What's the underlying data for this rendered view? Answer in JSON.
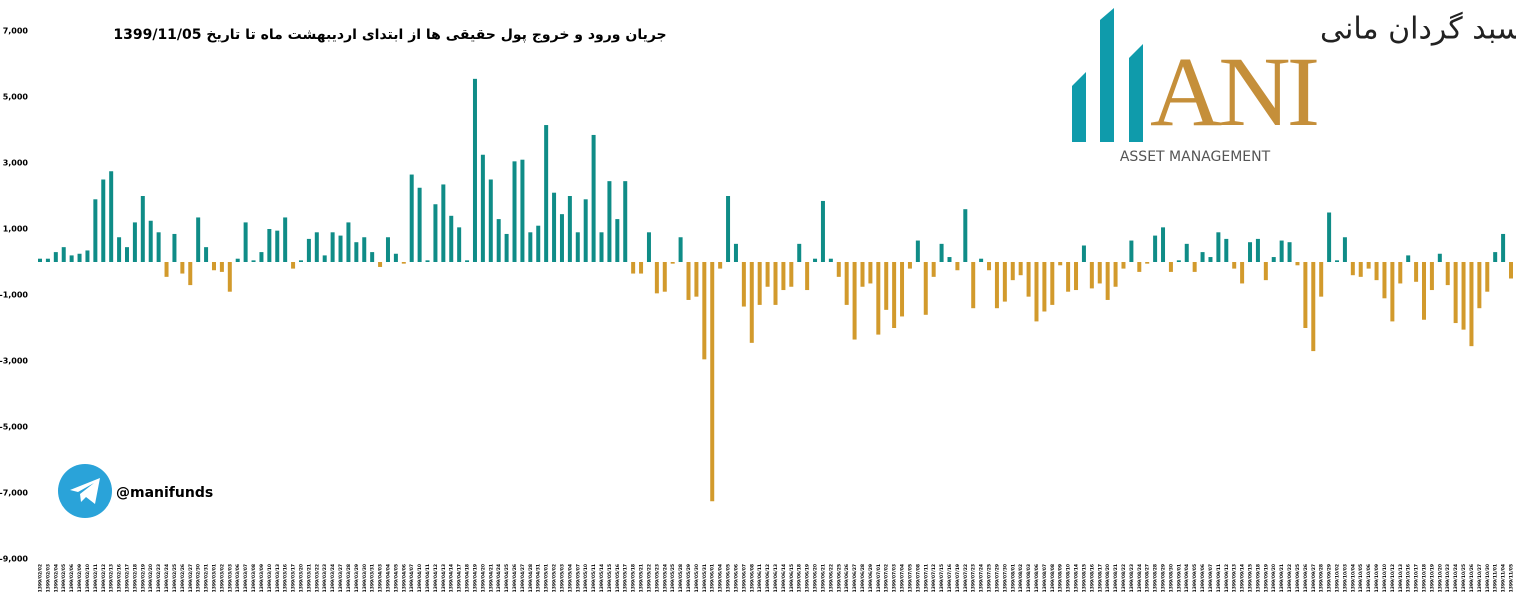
{
  "chart_data": {
    "type": "bar",
    "title": "جریان ورود و خروج پول حقیقی ها از ابتدای اردیبهشت ماه تا تاریخ 1399/11/05",
    "logo": {
      "persian": "سبد گردان مانی",
      "letters": "ANI",
      "tagline": "ASSET MANAGEMENT"
    },
    "handle": "@manifunds",
    "colors": {
      "positive": "#0f8c87",
      "negative": "#d29a2c"
    },
    "ylim": [
      -9000,
      7000
    ],
    "yticks": [
      {
        "value": 7000,
        "label": "7,000"
      },
      {
        "value": 5000,
        "label": "5,000"
      },
      {
        "value": 3000,
        "label": "3,000"
      },
      {
        "value": 1000,
        "label": "1,000"
      },
      {
        "value": -1000,
        "label": "-1,000"
      },
      {
        "value": -3000,
        "label": "-3,000"
      },
      {
        "value": -5000,
        "label": "-5,000"
      },
      {
        "value": -7000,
        "label": "-7,000"
      },
      {
        "value": -9000,
        "label": "-9,000"
      }
    ],
    "categories": [
      "1399/02/02",
      "1399/02/03",
      "1399/02/04",
      "1399/02/05",
      "1399/02/06",
      "1399/02/09",
      "1399/02/10",
      "1399/02/11",
      "1399/02/12",
      "1399/02/13",
      "1399/02/16",
      "1399/02/17",
      "1399/02/18",
      "1399/02/19",
      "1399/02/20",
      "1399/02/23",
      "1399/02/24",
      "1399/02/25",
      "1399/02/26",
      "1399/02/27",
      "1399/02/30",
      "1399/02/31",
      "1399/03/01",
      "1399/03/02",
      "1399/03/03",
      "1399/03/06",
      "1399/03/07",
      "1399/03/08",
      "1399/03/09",
      "1399/03/10",
      "1399/03/13",
      "1399/03/16",
      "1399/03/17",
      "1399/03/20",
      "1399/03/21",
      "1399/03/22",
      "1399/03/23",
      "1399/03/24",
      "1399/03/27",
      "1399/03/28",
      "1399/03/29",
      "1399/03/30",
      "1399/03/31",
      "1399/04/03",
      "1399/04/04",
      "1399/04/05",
      "1399/04/06",
      "1399/04/07",
      "1399/04/10",
      "1399/04/11",
      "1399/04/12",
      "1399/04/13",
      "1399/04/14",
      "1399/04/17",
      "1399/04/18",
      "1399/04/19",
      "1399/04/20",
      "1399/04/21",
      "1399/04/24",
      "1399/04/25",
      "1399/04/26",
      "1399/04/27",
      "1399/04/28",
      "1399/04/31",
      "1399/05/01",
      "1399/05/02",
      "1399/05/03",
      "1399/05/04",
      "1399/05/07",
      "1399/05/10",
      "1399/05/11",
      "1399/05/14",
      "1399/05/15",
      "1399/05/16",
      "1399/05/17",
      "1399/05/18",
      "1399/05/21",
      "1399/05/22",
      "1399/05/23",
      "1399/05/24",
      "1399/05/25",
      "1399/05/28",
      "1399/05/29",
      "1399/05/30",
      "1399/05/31",
      "1399/06/01",
      "1399/06/04",
      "1399/06/05",
      "1399/06/06",
      "1399/06/07",
      "1399/06/08",
      "1399/06/11",
      "1399/06/12",
      "1399/06/13",
      "1399/06/14",
      "1399/06/15",
      "1399/06/18",
      "1399/06/19",
      "1399/06/20",
      "1399/06/21",
      "1399/06/22",
      "1399/06/25",
      "1399/06/26",
      "1399/06/27",
      "1399/06/28",
      "1399/06/29",
      "1399/07/01",
      "1399/07/02",
      "1399/07/03",
      "1399/07/04",
      "1399/07/05",
      "1399/07/08",
      "1399/07/11",
      "1399/07/12",
      "1399/07/15",
      "1399/07/16",
      "1399/07/19",
      "1399/07/22",
      "1399/07/23",
      "1399/07/24",
      "1399/07/25",
      "1399/07/29",
      "1399/07/30",
      "1399/08/01",
      "1399/08/02",
      "1399/08/03",
      "1399/08/06",
      "1399/08/07",
      "1399/08/08",
      "1399/08/09",
      "1399/08/10",
      "1399/08/14",
      "1399/08/15",
      "1399/08/16",
      "1399/08/17",
      "1399/08/20",
      "1399/08/21",
      "1399/08/22",
      "1399/08/23",
      "1399/08/24",
      "1399/08/27",
      "1399/08/28",
      "1399/08/29",
      "1399/08/30",
      "1399/09/01",
      "1399/09/04",
      "1399/09/05",
      "1399/09/06",
      "1399/09/07",
      "1399/09/11",
      "1399/09/12",
      "1399/09/13",
      "1399/09/14",
      "1399/09/15",
      "1399/09/18",
      "1399/09/19",
      "1399/09/20",
      "1399/09/21",
      "1399/09/22",
      "1399/09/25",
      "1399/09/26",
      "1399/09/27",
      "1399/09/28",
      "1399/09/29",
      "1399/10/02",
      "1399/10/03",
      "1399/10/04",
      "1399/10/05",
      "1399/10/06",
      "1399/10/09",
      "1399/10/10",
      "1399/10/12",
      "1399/10/13",
      "1399/10/16",
      "1399/10/17",
      "1399/10/18",
      "1399/10/19",
      "1399/10/20",
      "1399/10/23",
      "1399/10/24",
      "1399/10/25",
      "1399/10/26",
      "1399/10/27",
      "1399/10/30",
      "1399/11/01",
      "1399/11/04",
      "1399/11/05"
    ],
    "values": [
      100,
      100,
      300,
      450,
      200,
      250,
      350,
      1900,
      2500,
      2750,
      750,
      450,
      1200,
      2000,
      1250,
      900,
      -450,
      850,
      -350,
      -700,
      1350,
      450,
      -250,
      -300,
      -900,
      100,
      1200,
      50,
      300,
      1000,
      950,
      1350,
      -200,
      50,
      700,
      900,
      200,
      900,
      800,
      1200,
      600,
      750,
      300,
      -150,
      750,
      250,
      -50,
      2650,
      2250,
      50,
      1750,
      2350,
      1400,
      1050,
      50,
      5550,
      3250,
      2500,
      1300,
      850,
      3050,
      3100,
      900,
      1100,
      4150,
      2100,
      1450,
      2000,
      900,
      1900,
      3850,
      900,
      2450,
      1300,
      2450,
      -350,
      -350,
      900,
      -950,
      -900,
      -50,
      750,
      -1150,
      -1050,
      -2950,
      -7250,
      -200,
      2000,
      550,
      -1350,
      -2450,
      -1300,
      -750,
      -1300,
      -850,
      -750,
      550,
      -850,
      100,
      1850,
      100,
      -450,
      -1300,
      -2350,
      -750,
      -650,
      -2200,
      -1450,
      -2000,
      -1650,
      -200,
      650,
      -1600,
      -450,
      550,
      150,
      -250,
      1600,
      -1400,
      100,
      -250,
      -1400,
      -1200,
      -550,
      -400,
      -1050,
      -1800,
      -1500,
      -1300,
      -100,
      -900,
      -850,
      500,
      -800,
      -650,
      -1150,
      -750,
      -200,
      650,
      -300,
      -50,
      800,
      1050,
      -300,
      50,
      550,
      -300,
      300,
      150,
      900,
      700,
      -200,
      -650,
      600,
      700,
      -550,
      150,
      650,
      600,
      -100,
      -2000,
      -2700,
      -1050,
      1500,
      50,
      750,
      -400,
      -450,
      -200,
      -550,
      -1100,
      -1800,
      -650,
      200,
      -600,
      -1750,
      -850,
      250,
      -700,
      -1850,
      -2050,
      -2550,
      -1400,
      -900,
      300,
      850,
      -500
    ]
  }
}
